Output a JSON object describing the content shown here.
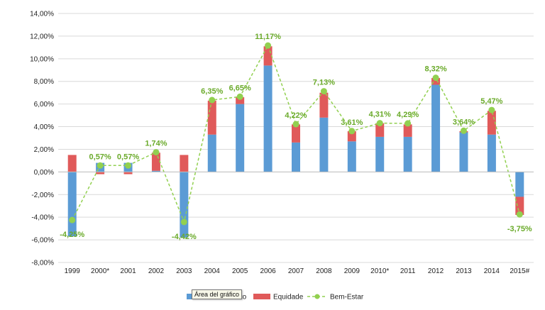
{
  "chart_data": {
    "type": "bar",
    "stacked": true,
    "categories": [
      "1999",
      "2000*",
      "2001",
      "2002",
      "2003",
      "2004",
      "2005",
      "2006",
      "2007",
      "2008",
      "2009",
      "2010*",
      "2011",
      "2012",
      "2013",
      "2014",
      "2015#"
    ],
    "series": [
      {
        "name": "Crescimento",
        "type": "bar",
        "color": "#5b9bd5",
        "values": [
          -5.7,
          0.8,
          0.8,
          0.1,
          -5.8,
          3.3,
          6.0,
          9.4,
          2.6,
          4.8,
          2.7,
          3.1,
          3.1,
          7.7,
          3.5,
          3.3,
          -2.2
        ]
      },
      {
        "name": "Equidade",
        "type": "bar",
        "color": "#e05a5a",
        "values": [
          1.5,
          -0.2,
          -0.2,
          1.6,
          1.5,
          3.0,
          0.6,
          1.7,
          1.6,
          2.2,
          0.9,
          1.2,
          1.1,
          0.6,
          0.1,
          2.1,
          -1.6
        ]
      },
      {
        "name": "Bem-Estar",
        "type": "line",
        "color": "#92d050",
        "values": [
          -4.25,
          0.57,
          0.57,
          1.74,
          -4.42,
          6.35,
          6.65,
          11.17,
          4.22,
          7.13,
          3.61,
          4.31,
          4.29,
          8.32,
          3.64,
          5.47,
          -3.75
        ],
        "labels": [
          "-4,25%",
          "0,57%",
          "0,57%",
          "1,74%",
          "-4,42%",
          "6,35%",
          "6,65%",
          "11,17%",
          "4,22%",
          "7,13%",
          "3,61%",
          "4,31%",
          "4,29%",
          "8,32%",
          "3,64%",
          "5,47%",
          "-3,75%"
        ]
      }
    ],
    "ylim": [
      -8,
      14
    ],
    "yticks": [
      -8,
      -6,
      -4,
      -2,
      0,
      2,
      4,
      6,
      8,
      10,
      12,
      14
    ],
    "ytick_labels": [
      "-8,00%",
      "-6,00%",
      "-4,00%",
      "-2,00%",
      "0,00%",
      "2,00%",
      "4,00%",
      "6,00%",
      "8,00%",
      "10,00%",
      "12,00%",
      "14,00%"
    ],
    "grid": true,
    "legend": [
      "Crescimento",
      "Equidade",
      "Bem-Estar"
    ],
    "legend_position": "bottom"
  },
  "tooltip": {
    "text": "Área del gráfico"
  }
}
